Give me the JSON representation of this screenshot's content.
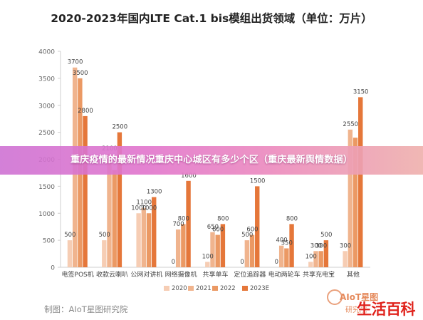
{
  "chart_data": {
    "type": "bar",
    "title": "2020-2023年国内LTE Cat.1 bis模组出货领域（单位：万片）",
    "categories": [
      "电签POS机",
      "收款云喇叭",
      "公网对讲机",
      "网络摄像机",
      "共享单车",
      "定位追踪器",
      "电动两轮车",
      "共享充电宝",
      "其他"
    ],
    "series": [
      {
        "name": "2020",
        "color": "#f6cdb4",
        "values": [
          500,
          500,
          1000,
          0,
          100,
          0,
          0,
          100,
          300
        ]
      },
      {
        "name": "2021",
        "color": "#f0b48e",
        "values": [
          3700,
          2100,
          1100,
          700,
          650,
          500,
          400,
          300,
          2550
        ]
      },
      {
        "name": "2022",
        "color": "#eb9964",
        "values": [
          3500,
          1800,
          1000,
          800,
          600,
          600,
          350,
          300,
          2400
        ]
      },
      {
        "name": "2023E",
        "color": "#e5773a",
        "values": [
          2800,
          2500,
          1300,
          1600,
          800,
          1500,
          800,
          500,
          3150
        ]
      }
    ],
    "data_labels": [
      [
        "500",
        "3700",
        "3500",
        "2800"
      ],
      [
        "500",
        "2100",
        "",
        "2500"
      ],
      [
        "1000",
        "1100",
        "1000",
        "1300"
      ],
      [
        "0",
        "700",
        "800",
        "1600"
      ],
      [
        "100",
        "650",
        "600",
        "800"
      ],
      [
        "0",
        "500",
        "600",
        "1500"
      ],
      [
        "0",
        "400",
        "350",
        "800"
      ],
      [
        "100",
        "300",
        "300",
        "500"
      ],
      [
        "300",
        "2550",
        "",
        "3150"
      ]
    ],
    "ylim": [
      0,
      4000
    ],
    "yticks": [
      "0",
      "500",
      "1000",
      "1500",
      "2000",
      "2500",
      "3000",
      "3500",
      "4000"
    ],
    "legend": [
      "2020",
      "2021",
      "2022",
      "2023E"
    ],
    "legend_position": "bottom",
    "grid": false
  },
  "banner": {
    "text": "重庆疫情的最新情况重庆中心城区有多少个区（重庆最新舆情数据）"
  },
  "footer": {
    "source": "制图：AIoT星图研究院"
  },
  "logo": {
    "name": "AIoT星图",
    "sub": "研究院"
  },
  "watermark": {
    "text": "生活百科"
  }
}
